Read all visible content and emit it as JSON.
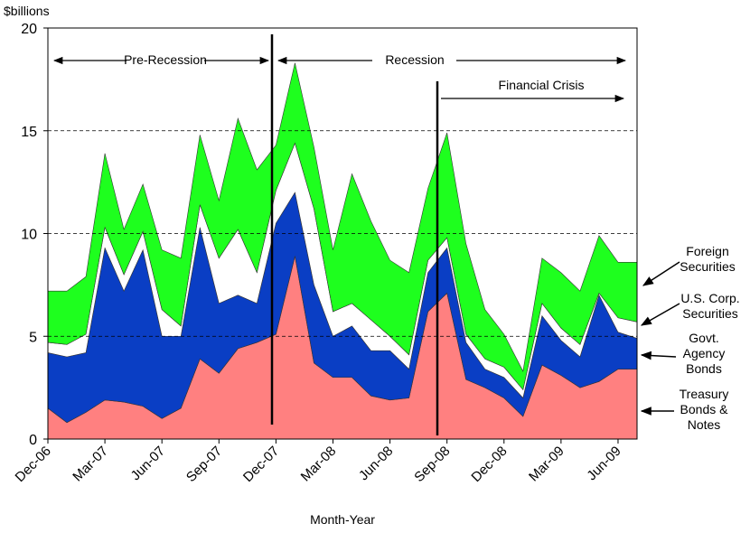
{
  "chart_data": {
    "type": "stacked-area",
    "y_label": "$billions",
    "x_label": "Month-Year",
    "annotations": [
      "Pre-Recession",
      "Recession",
      "Financial Crisis"
    ],
    "categories": [
      "Dec-06",
      null,
      null,
      "Mar-07",
      null,
      null,
      "Jun-07",
      null,
      null,
      "Sep-07",
      null,
      null,
      "Dec-07",
      null,
      null,
      "Mar-08",
      null,
      null,
      "Jun-08",
      null,
      null,
      "Sep-08",
      null,
      null,
      "Dec-08",
      null,
      null,
      "Mar-09",
      null,
      null,
      "Jun-09",
      null
    ],
    "series": [
      {
        "name": "Treasury Bonds & Notes",
        "color": "#ff8080",
        "values": [
          1.5,
          0.8,
          1.3,
          1.9,
          1.8,
          1.6,
          1.0,
          1.5,
          3.9,
          3.2,
          4.4,
          4.7,
          5.1,
          8.9,
          3.7,
          3.0,
          3.0,
          2.1,
          1.9,
          2.0,
          6.2,
          7.1,
          2.9,
          2.5,
          2.0,
          1.1,
          3.6,
          3.1,
          2.5,
          2.8,
          3.4,
          3.4
        ]
      },
      {
        "name": "Govt. Agency Bonds",
        "color": "#0a3ec4",
        "values": [
          2.7,
          3.2,
          2.9,
          7.4,
          5.4,
          7.6,
          4.0,
          3.5,
          6.4,
          3.4,
          2.6,
          1.9,
          5.4,
          3.1,
          3.8,
          2.0,
          2.5,
          2.2,
          2.4,
          1.4,
          1.9,
          2.2,
          1.8,
          0.9,
          1.0,
          0.9,
          2.4,
          1.7,
          1.5,
          4.2,
          1.8,
          1.5
        ]
      },
      {
        "name": "U.S. Corp. Securities",
        "color": "#ffffff",
        "values": [
          0.5,
          0.6,
          0.9,
          1.0,
          0.8,
          0.9,
          1.3,
          0.5,
          1.1,
          2.2,
          3.2,
          1.5,
          1.6,
          2.4,
          3.7,
          1.2,
          1.1,
          1.5,
          0.7,
          0.7,
          0.6,
          0.5,
          0.4,
          0.5,
          0.5,
          0.4,
          0.6,
          0.6,
          0.6,
          0.1,
          0.7,
          0.8
        ]
      },
      {
        "name": "Foreign Securities",
        "color": "#1eff1e",
        "values": [
          2.5,
          2.6,
          2.8,
          3.6,
          2.2,
          2.3,
          2.9,
          3.3,
          3.4,
          2.8,
          5.4,
          5.0,
          2.2,
          3.9,
          3.0,
          3.0,
          6.3,
          4.8,
          3.7,
          4.0,
          3.5,
          5.1,
          4.4,
          2.4,
          1.6,
          0.9,
          2.2,
          2.7,
          2.6,
          2.8,
          2.7,
          2.9
        ]
      }
    ],
    "ylim": [
      0,
      20
    ],
    "yticks": [
      0,
      5,
      10,
      15,
      20
    ],
    "grid": true
  }
}
